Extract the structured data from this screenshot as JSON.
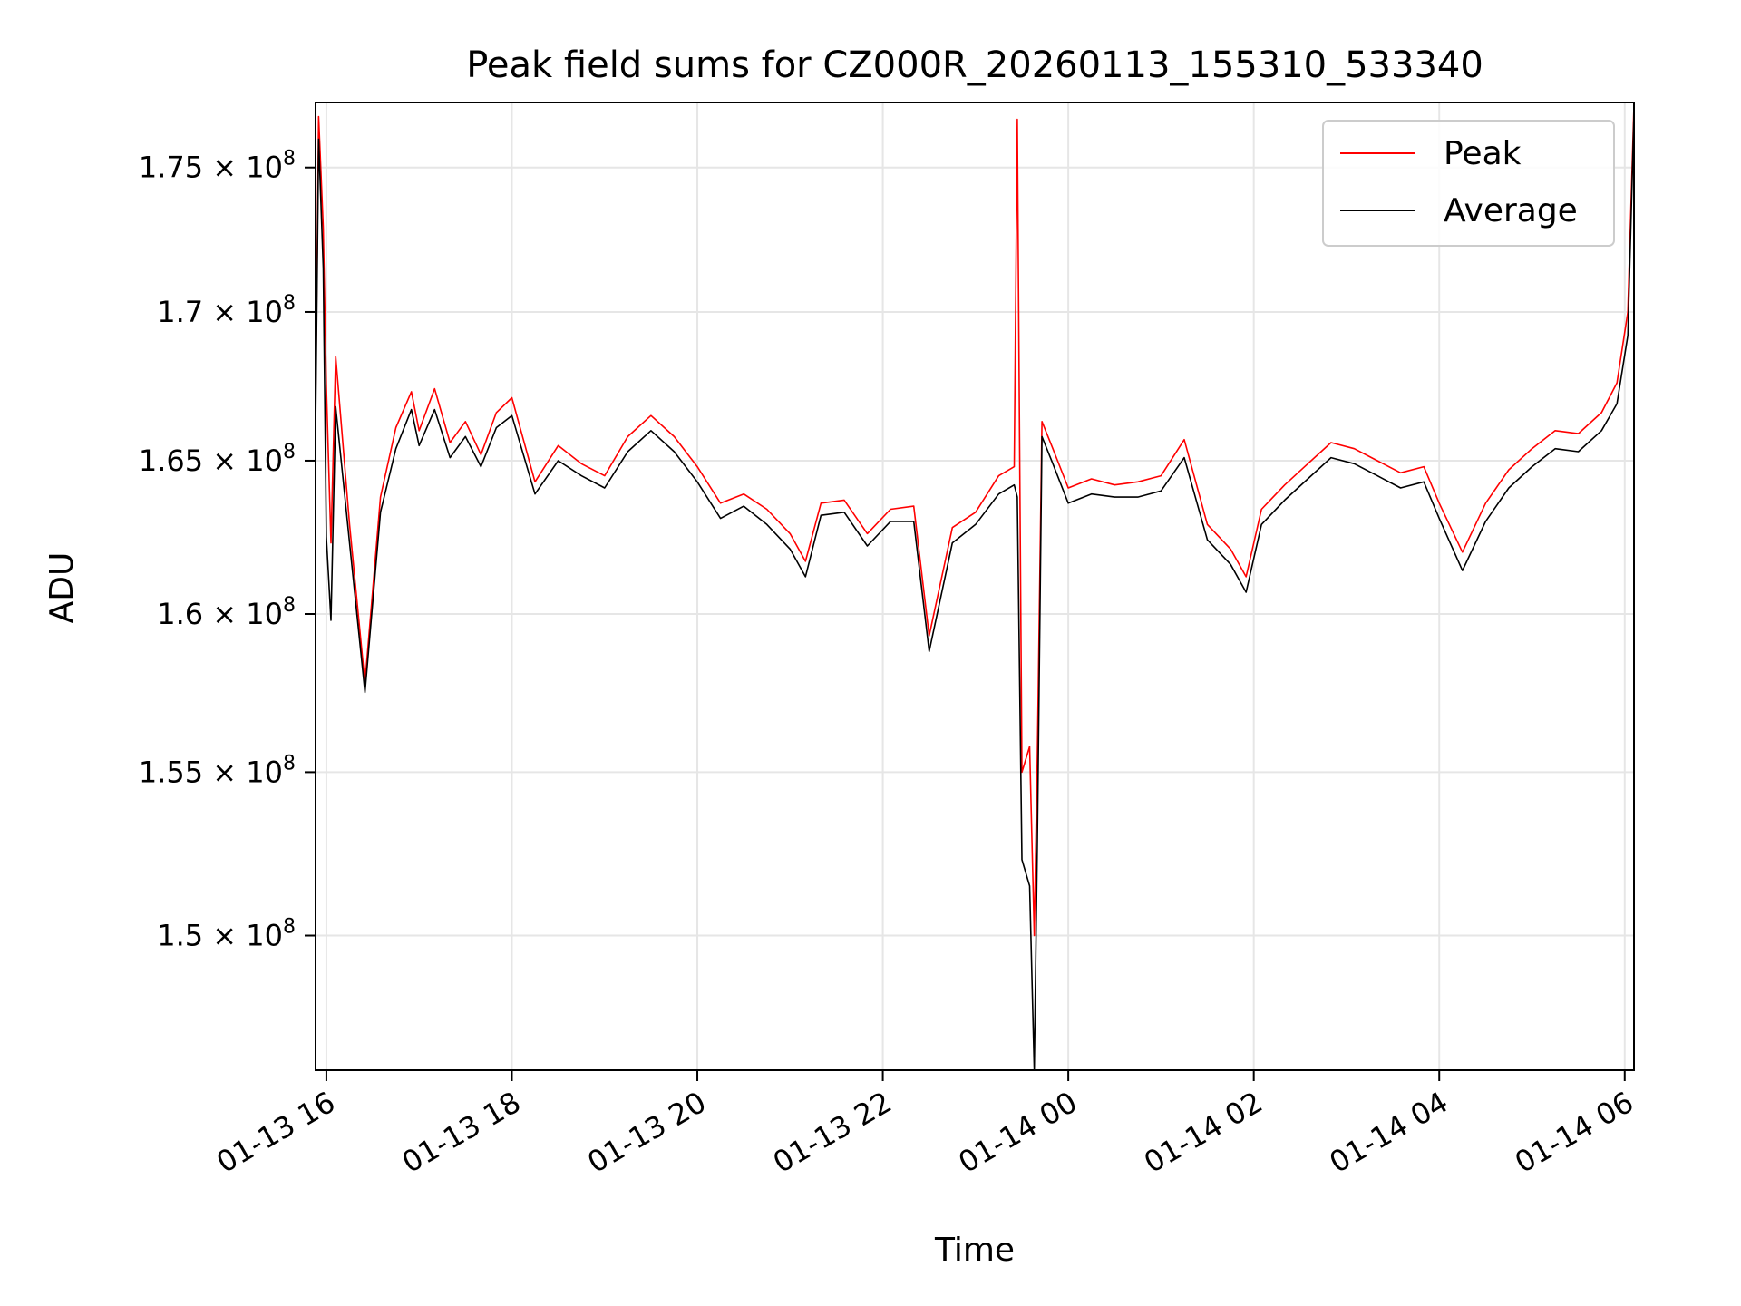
{
  "chart_data": {
    "type": "line",
    "title": "Peak field sums for CZ000R_20260113_155310_533340",
    "xlabel": "Time",
    "ylabel": "ADU",
    "x_range": [
      "2026-01-13 15:53",
      "2026-01-14 06:06"
    ],
    "ylim": [
      146000000,
      177300000
    ],
    "y_scale": "log",
    "grid": true,
    "legend_position": "top-right",
    "x_ticks": [
      {
        "value": "2026-01-13 16:00",
        "label": "01-13 16"
      },
      {
        "value": "2026-01-13 18:00",
        "label": "01-13 18"
      },
      {
        "value": "2026-01-13 20:00",
        "label": "01-13 20"
      },
      {
        "value": "2026-01-13 22:00",
        "label": "01-13 22"
      },
      {
        "value": "2026-01-14 00:00",
        "label": "01-14 00"
      },
      {
        "value": "2026-01-14 02:00",
        "label": "01-14 02"
      },
      {
        "value": "2026-01-14 04:00",
        "label": "01-14 04"
      },
      {
        "value": "2026-01-14 06:00",
        "label": "01-14 06"
      }
    ],
    "y_ticks": [
      {
        "value": 150000000,
        "mantissa": "1.5",
        "exponent": "8"
      },
      {
        "value": 155000000,
        "mantissa": "1.55",
        "exponent": "8"
      },
      {
        "value": 160000000,
        "mantissa": "1.6",
        "exponent": "8"
      },
      {
        "value": 165000000,
        "mantissa": "1.65",
        "exponent": "8"
      },
      {
        "value": 170000000,
        "mantissa": "1.7",
        "exponent": "8"
      },
      {
        "value": 175000000,
        "mantissa": "1.75",
        "exponent": "8"
      }
    ],
    "series": [
      {
        "name": "Peak",
        "color": "#ff0000",
        "x": [
          "2026-01-13 15:53",
          "2026-01-13 15:55",
          "2026-01-13 15:58",
          "2026-01-13 16:00",
          "2026-01-13 16:03",
          "2026-01-13 16:06",
          "2026-01-13 16:15",
          "2026-01-13 16:25",
          "2026-01-13 16:35",
          "2026-01-13 16:45",
          "2026-01-13 16:55",
          "2026-01-13 17:00",
          "2026-01-13 17:10",
          "2026-01-13 17:20",
          "2026-01-13 17:30",
          "2026-01-13 17:40",
          "2026-01-13 17:50",
          "2026-01-13 18:00",
          "2026-01-13 18:15",
          "2026-01-13 18:30",
          "2026-01-13 18:45",
          "2026-01-13 19:00",
          "2026-01-13 19:15",
          "2026-01-13 19:30",
          "2026-01-13 19:45",
          "2026-01-13 20:00",
          "2026-01-13 20:15",
          "2026-01-13 20:30",
          "2026-01-13 20:45",
          "2026-01-13 21:00",
          "2026-01-13 21:10",
          "2026-01-13 21:20",
          "2026-01-13 21:35",
          "2026-01-13 21:50",
          "2026-01-13 22:05",
          "2026-01-13 22:20",
          "2026-01-13 22:30",
          "2026-01-13 22:45",
          "2026-01-13 23:00",
          "2026-01-13 23:15",
          "2026-01-13 23:25",
          "2026-01-13 23:27",
          "2026-01-13 23:30",
          "2026-01-13 23:35",
          "2026-01-13 23:38",
          "2026-01-13 23:40",
          "2026-01-13 23:43",
          "2026-01-13 23:50",
          "2026-01-14 00:00",
          "2026-01-14 00:15",
          "2026-01-14 00:30",
          "2026-01-14 00:45",
          "2026-01-14 01:00",
          "2026-01-14 01:15",
          "2026-01-14 01:30",
          "2026-01-14 01:45",
          "2026-01-14 01:55",
          "2026-01-14 02:05",
          "2026-01-14 02:20",
          "2026-01-14 02:35",
          "2026-01-14 02:50",
          "2026-01-14 03:05",
          "2026-01-14 03:20",
          "2026-01-14 03:35",
          "2026-01-14 03:50",
          "2026-01-14 04:00",
          "2026-01-14 04:15",
          "2026-01-14 04:30",
          "2026-01-14 04:45",
          "2026-01-14 05:00",
          "2026-01-14 05:15",
          "2026-01-14 05:30",
          "2026-01-14 05:45",
          "2026-01-14 05:55",
          "2026-01-14 06:02",
          "2026-01-14 06:06"
        ],
        "values": [
          166800000,
          176800000,
          172900000,
          167500000,
          162300000,
          168500000,
          162900000,
          157800000,
          163800000,
          166100000,
          167300000,
          166000000,
          167400000,
          165600000,
          166300000,
          165200000,
          166600000,
          167100000,
          164300000,
          165500000,
          164900000,
          164500000,
          165800000,
          166500000,
          165800000,
          164800000,
          163600000,
          163900000,
          163400000,
          162600000,
          161700000,
          163600000,
          163700000,
          162600000,
          163400000,
          163500000,
          159300000,
          162800000,
          163300000,
          164500000,
          164800000,
          176700000,
          155000000,
          155800000,
          150000000,
          155500000,
          166300000,
          165400000,
          164100000,
          164400000,
          164200000,
          164300000,
          164500000,
          165700000,
          162900000,
          162100000,
          161200000,
          163400000,
          164200000,
          164900000,
          165600000,
          165400000,
          165000000,
          164600000,
          164800000,
          163600000,
          162000000,
          163600000,
          164700000,
          165400000,
          166000000,
          165900000,
          166600000,
          167600000,
          170000000,
          177200000
        ]
      },
      {
        "name": "Average",
        "color": "#000000",
        "x": [
          "2026-01-13 15:53",
          "2026-01-13 15:55",
          "2026-01-13 15:58",
          "2026-01-13 16:00",
          "2026-01-13 16:03",
          "2026-01-13 16:06",
          "2026-01-13 16:15",
          "2026-01-13 16:25",
          "2026-01-13 16:35",
          "2026-01-13 16:45",
          "2026-01-13 16:55",
          "2026-01-13 17:00",
          "2026-01-13 17:10",
          "2026-01-13 17:20",
          "2026-01-13 17:30",
          "2026-01-13 17:40",
          "2026-01-13 17:50",
          "2026-01-13 18:00",
          "2026-01-13 18:15",
          "2026-01-13 18:30",
          "2026-01-13 18:45",
          "2026-01-13 19:00",
          "2026-01-13 19:15",
          "2026-01-13 19:30",
          "2026-01-13 19:45",
          "2026-01-13 20:00",
          "2026-01-13 20:15",
          "2026-01-13 20:30",
          "2026-01-13 20:45",
          "2026-01-13 21:00",
          "2026-01-13 21:10",
          "2026-01-13 21:20",
          "2026-01-13 21:35",
          "2026-01-13 21:50",
          "2026-01-13 22:05",
          "2026-01-13 22:20",
          "2026-01-13 22:30",
          "2026-01-13 22:45",
          "2026-01-13 23:00",
          "2026-01-13 23:15",
          "2026-01-13 23:25",
          "2026-01-13 23:27",
          "2026-01-13 23:30",
          "2026-01-13 23:35",
          "2026-01-13 23:38",
          "2026-01-13 23:40",
          "2026-01-13 23:43",
          "2026-01-13 23:50",
          "2026-01-14 00:00",
          "2026-01-14 00:15",
          "2026-01-14 00:30",
          "2026-01-14 00:45",
          "2026-01-14 01:00",
          "2026-01-14 01:15",
          "2026-01-14 01:30",
          "2026-01-14 01:45",
          "2026-01-14 01:55",
          "2026-01-14 02:05",
          "2026-01-14 02:20",
          "2026-01-14 02:35",
          "2026-01-14 02:50",
          "2026-01-14 03:05",
          "2026-01-14 03:20",
          "2026-01-14 03:35",
          "2026-01-14 03:50",
          "2026-01-14 04:00",
          "2026-01-14 04:15",
          "2026-01-14 04:30",
          "2026-01-14 04:45",
          "2026-01-14 05:00",
          "2026-01-14 05:15",
          "2026-01-14 05:30",
          "2026-01-14 05:45",
          "2026-01-14 05:55",
          "2026-01-14 06:02",
          "2026-01-14 06:06"
        ],
        "values": [
          166000000,
          176000000,
          171500000,
          162500000,
          159800000,
          166800000,
          162300000,
          157500000,
          163300000,
          165400000,
          166700000,
          165500000,
          166700000,
          165100000,
          165800000,
          164800000,
          166100000,
          166500000,
          163900000,
          165000000,
          164500000,
          164100000,
          165300000,
          166000000,
          165300000,
          164300000,
          163100000,
          163500000,
          162900000,
          162100000,
          161200000,
          163200000,
          163300000,
          162200000,
          163000000,
          163000000,
          158800000,
          162300000,
          162900000,
          163900000,
          164200000,
          163800000,
          152300000,
          151500000,
          146000000,
          152800000,
          165800000,
          164900000,
          163600000,
          163900000,
          163800000,
          163800000,
          164000000,
          165100000,
          162400000,
          161600000,
          160700000,
          162900000,
          163700000,
          164400000,
          165100000,
          164900000,
          164500000,
          164100000,
          164300000,
          163100000,
          161400000,
          163000000,
          164100000,
          164800000,
          165400000,
          165300000,
          166000000,
          166900000,
          169200000,
          176900000
        ]
      }
    ]
  }
}
